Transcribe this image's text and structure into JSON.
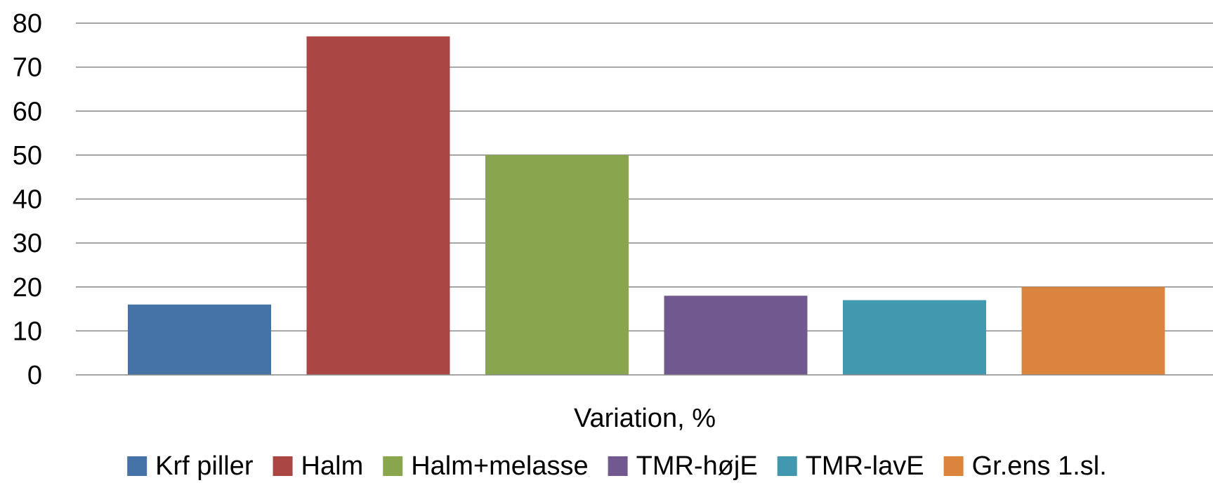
{
  "chart_data": {
    "type": "bar",
    "title": "",
    "xlabel": "Variation, %",
    "ylabel": "",
    "ylim": [
      0,
      80
    ],
    "yticks": [
      0,
      10,
      20,
      30,
      40,
      50,
      60,
      70,
      80
    ],
    "grid": true,
    "legend_position": "bottom",
    "categories": [
      "Variation, %"
    ],
    "series": [
      {
        "name": "Krf piller",
        "values": [
          16
        ],
        "color": "#4572A7"
      },
      {
        "name": "Halm",
        "values": [
          77
        ],
        "color": "#AA4643"
      },
      {
        "name": "Halm+melasse",
        "values": [
          50
        ],
        "color": "#89A54E"
      },
      {
        "name": "TMR-højE",
        "values": [
          18
        ],
        "color": "#71588F"
      },
      {
        "name": "TMR-lavE",
        "values": [
          17
        ],
        "color": "#4198AF"
      },
      {
        "name": "Gr.ens 1.sl.",
        "values": [
          20
        ],
        "color": "#DB843D"
      }
    ]
  }
}
